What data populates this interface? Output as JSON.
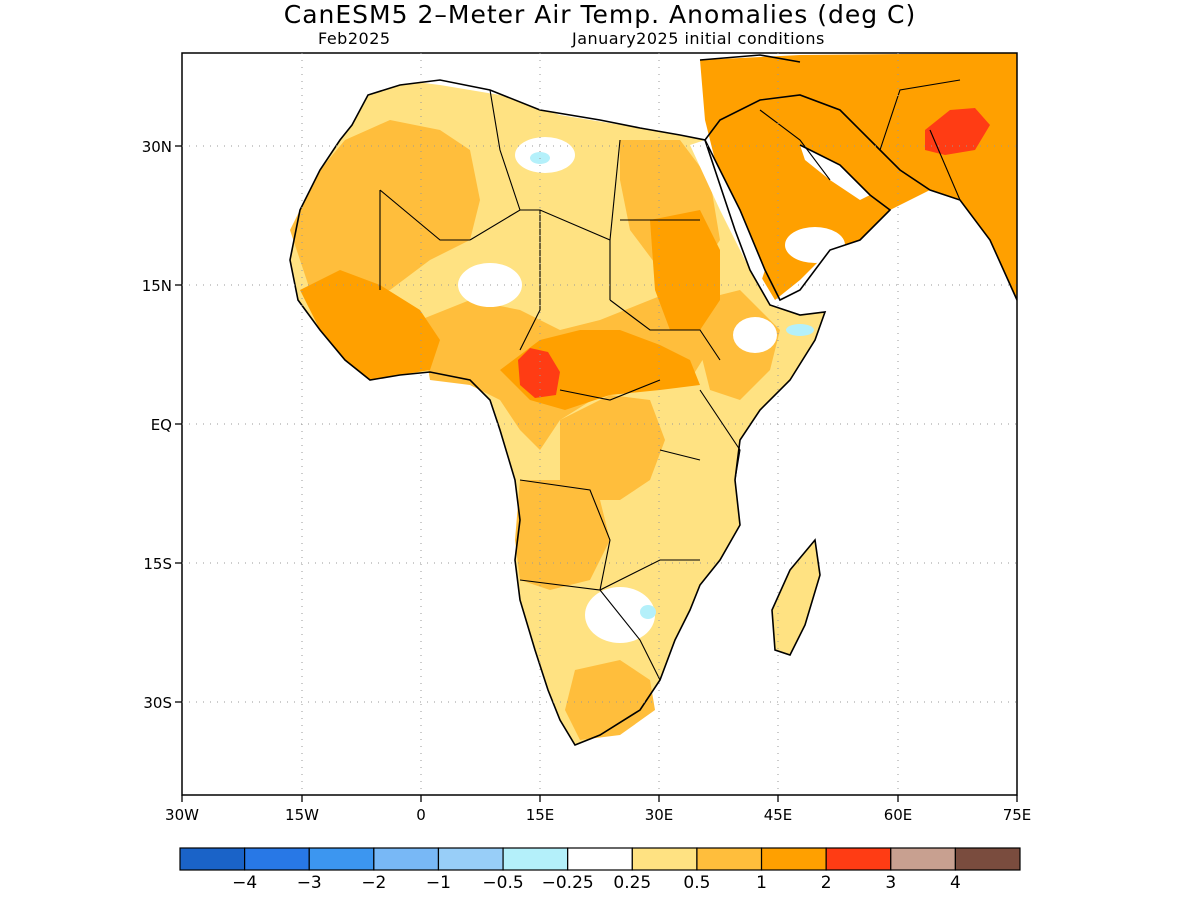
{
  "header": {
    "title": "CanESM5 2–Meter Air Temp. Anomalies (deg C)",
    "valid_month": "Feb2025",
    "init": "January2025 initial conditions"
  },
  "axes": {
    "lat_labels": [
      "30N",
      "15N",
      "EQ",
      "15S",
      "30S"
    ],
    "lon_labels": [
      "30W",
      "15W",
      "0",
      "15E",
      "30E",
      "45E",
      "60E",
      "75E"
    ],
    "lon_range": [
      -30,
      75
    ],
    "lat_range": [
      -43,
      39
    ]
  },
  "legend": {
    "colors": [
      "#1a63c8",
      "#2878e6",
      "#3c96f0",
      "#78b8f6",
      "#98cef8",
      "#b4f0fa",
      "#ffffff",
      "#ffe282",
      "#ffbe3c",
      "#ffa000",
      "#ff3c14",
      "#c8a090",
      "#7a4c3e"
    ],
    "labels": [
      "−4",
      "−3",
      "−2",
      "−1",
      "−0.5",
      "−0.25",
      "0.25",
      "0.5",
      "1",
      "2",
      "3",
      "4"
    ]
  },
  "map": {
    "region": "Africa and Arabian Peninsula",
    "variable": "2-meter air temperature anomaly",
    "units": "deg C"
  }
}
